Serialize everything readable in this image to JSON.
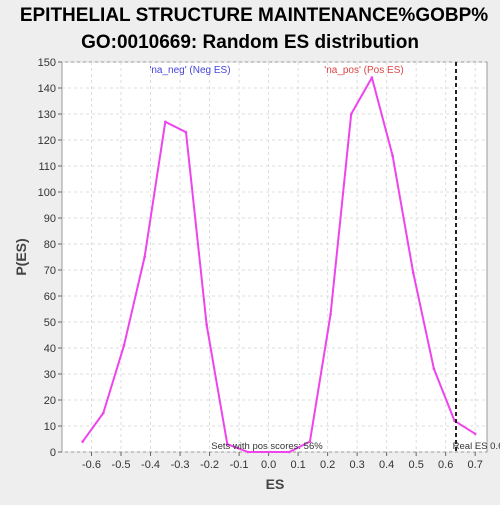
{
  "chart_data": {
    "type": "line",
    "title": {
      "line1": "EPITHELIAL STRUCTURE MAINTENANCE%GOBP%",
      "line2": "GO:0010669: Random ES distribution"
    },
    "xlabel": "ES",
    "ylabel": "P(ES)",
    "xlim": [
      -0.7,
      0.74
    ],
    "ylim": [
      0,
      150
    ],
    "xticks": [
      -0.6,
      -0.5,
      -0.4,
      -0.3,
      -0.2,
      -0.1,
      0.0,
      0.1,
      0.2,
      0.3,
      0.4,
      0.5,
      0.6,
      0.7
    ],
    "xtick_labels": [
      "-0.6",
      "-0.5",
      "-0.4",
      "-0.3",
      "-0.2",
      "-0.1",
      "0.0",
      "0.1",
      "0.2",
      "0.3",
      "0.4",
      "0.5",
      "0.6",
      "0.7"
    ],
    "yticks": [
      0,
      10,
      20,
      30,
      40,
      50,
      60,
      70,
      80,
      90,
      100,
      110,
      120,
      130,
      140,
      150
    ],
    "ytick_labels": [
      "0",
      "10",
      "20",
      "30",
      "40",
      "50",
      "60",
      "70",
      "80",
      "90",
      "100",
      "110",
      "120",
      "130",
      "140",
      "150"
    ],
    "grid": true,
    "series": [
      {
        "color": "#ee44ee",
        "x": [
          -0.63,
          -0.56,
          -0.49,
          -0.42,
          -0.35,
          -0.28,
          -0.21,
          -0.14,
          -0.07,
          0.0,
          0.07,
          0.14,
          0.21,
          0.28,
          0.35,
          0.42,
          0.49,
          0.56,
          0.63,
          0.7
        ],
        "y": [
          4,
          15,
          41,
          75,
          127,
          123,
          49,
          3,
          0,
          0,
          0,
          4,
          53,
          130,
          144,
          114,
          69,
          32,
          12,
          7
        ]
      }
    ],
    "reference_line": {
      "x": 0.635,
      "label": "Real ES 0.6"
    },
    "legend": [
      {
        "text": "'na_neg' (Neg ES)",
        "color": "#4444dd"
      },
      {
        "text": "'na_pos' (Pos ES)",
        "color": "#dd4444"
      }
    ],
    "annotation": "Sets with pos scores: 56%"
  }
}
